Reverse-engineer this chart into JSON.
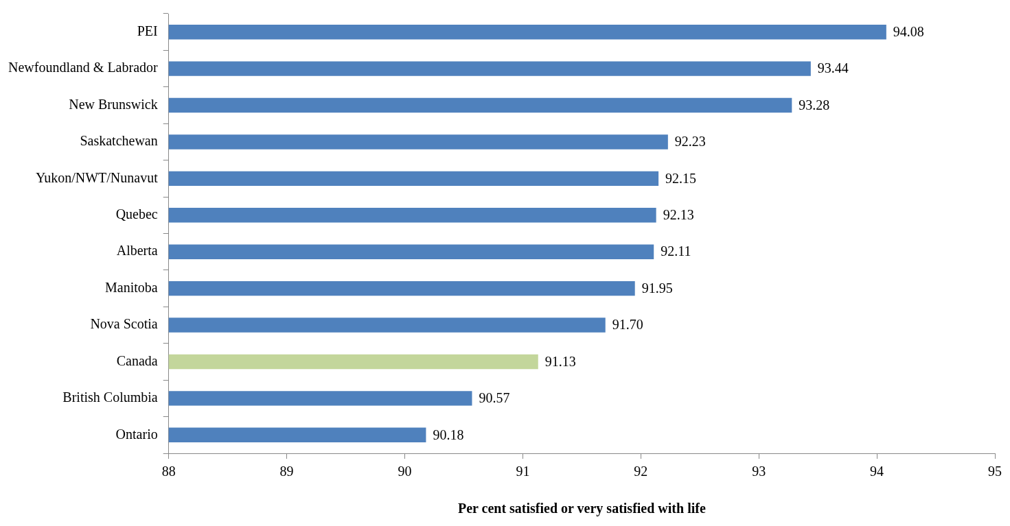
{
  "chart_data": {
    "type": "bar",
    "orientation": "horizontal",
    "xlabel": "Per cent satisfied or very satisfied with life",
    "categories": [
      "PEI",
      "Newfoundland & Labrador",
      "New Brunswick",
      "Saskatchewan",
      "Yukon/NWT/Nunavut",
      "Quebec",
      "Alberta",
      "Manitoba",
      "Nova Scotia",
      "Canada",
      "British Columbia",
      "Ontario"
    ],
    "values": [
      94.08,
      93.44,
      93.28,
      92.23,
      92.15,
      92.13,
      92.11,
      91.95,
      91.7,
      91.13,
      90.57,
      90.18
    ],
    "value_labels": [
      "94.08",
      "93.44",
      "93.28",
      "92.23",
      "92.15",
      "92.13",
      "92.11",
      "91.95",
      "91.70",
      "91.13",
      "90.57",
      "90.18"
    ],
    "colors": [
      "#4f81bd",
      "#4f81bd",
      "#4f81bd",
      "#4f81bd",
      "#4f81bd",
      "#4f81bd",
      "#4f81bd",
      "#4f81bd",
      "#4f81bd",
      "#c3d69b",
      "#4f81bd",
      "#4f81bd"
    ],
    "xlim": [
      88,
      95
    ],
    "xticks": [
      88,
      89,
      90,
      91,
      92,
      93,
      94,
      95
    ],
    "grid": false,
    "legend": false
  }
}
